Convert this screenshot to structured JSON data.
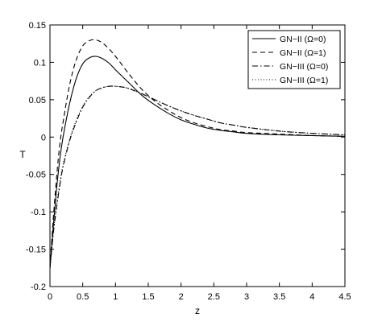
{
  "chart_data": {
    "type": "line",
    "title": "",
    "xlabel": "z",
    "ylabel": "T",
    "xlim": [
      0,
      4.5
    ],
    "ylim": [
      -0.2,
      0.15
    ],
    "xticks": [
      "0",
      "0.5",
      "1",
      "1.5",
      "2",
      "2.5",
      "3",
      "3.5",
      "4",
      "4.5"
    ],
    "yticks": [
      "0.15",
      "0.1",
      "0.05",
      "0",
      "-0.05",
      "-0.1",
      "-0.15",
      "-0.2"
    ],
    "grid": false,
    "legend_position": "top-right",
    "series": [
      {
        "name": "GN−II (Ω=0)",
        "style": "solid",
        "x": [
          0,
          0.05,
          0.1,
          0.15,
          0.2,
          0.3,
          0.4,
          0.5,
          0.6,
          0.7,
          0.8,
          0.9,
          1.0,
          1.2,
          1.4,
          1.6,
          1.8,
          2.0,
          2.2,
          2.4,
          2.6,
          2.8,
          3.0,
          3.5,
          4.0,
          4.5
        ],
        "y": [
          -0.175,
          -0.12,
          -0.07,
          -0.03,
          0.0,
          0.045,
          0.078,
          0.098,
          0.106,
          0.108,
          0.105,
          0.099,
          0.09,
          0.073,
          0.056,
          0.043,
          0.032,
          0.023,
          0.017,
          0.012,
          0.009,
          0.007,
          0.005,
          0.003,
          0.002,
          0.001
        ]
      },
      {
        "name": "GN−II (Ω=1)",
        "style": "dashed",
        "x": [
          0,
          0.05,
          0.1,
          0.15,
          0.2,
          0.3,
          0.4,
          0.5,
          0.6,
          0.7,
          0.8,
          0.9,
          1.0,
          1.2,
          1.4,
          1.6,
          1.8,
          2.0,
          2.2,
          2.4,
          2.6,
          2.8,
          3.0,
          3.5,
          4.0,
          4.5
        ],
        "y": [
          -0.175,
          -0.11,
          -0.055,
          -0.01,
          0.02,
          0.07,
          0.103,
          0.122,
          0.129,
          0.13,
          0.126,
          0.118,
          0.108,
          0.085,
          0.064,
          0.048,
          0.036,
          0.026,
          0.019,
          0.014,
          0.01,
          0.008,
          0.006,
          0.004,
          0.002,
          0.001
        ]
      },
      {
        "name": "GN−III (Ω=0)",
        "style": "dashdot",
        "x": [
          0,
          0.05,
          0.1,
          0.15,
          0.2,
          0.3,
          0.4,
          0.5,
          0.6,
          0.7,
          0.8,
          0.9,
          1.0,
          1.1,
          1.2,
          1.4,
          1.6,
          1.8,
          2.0,
          2.2,
          2.4,
          2.6,
          2.8,
          3.0,
          3.5,
          4.0,
          4.5
        ],
        "y": [
          -0.175,
          -0.13,
          -0.095,
          -0.065,
          -0.04,
          -0.005,
          0.02,
          0.04,
          0.053,
          0.062,
          0.066,
          0.068,
          0.068,
          0.067,
          0.065,
          0.058,
          0.05,
          0.042,
          0.035,
          0.029,
          0.024,
          0.019,
          0.016,
          0.013,
          0.008,
          0.005,
          0.003
        ]
      },
      {
        "name": "GN−III (Ω=1)",
        "style": "dotted",
        "x": [
          0,
          0.05,
          0.1,
          0.15,
          0.2,
          0.3,
          0.4,
          0.5,
          0.6,
          0.7,
          0.8,
          0.9,
          1.0,
          1.1,
          1.2,
          1.4,
          1.6,
          1.8,
          2.0,
          2.2,
          2.4,
          2.6,
          2.8,
          3.0,
          3.5,
          4.0,
          4.5
        ],
        "y": [
          -0.175,
          -0.128,
          -0.092,
          -0.062,
          -0.037,
          -0.003,
          0.022,
          0.041,
          0.054,
          0.062,
          0.066,
          0.068,
          0.068,
          0.067,
          0.065,
          0.058,
          0.05,
          0.042,
          0.035,
          0.029,
          0.024,
          0.019,
          0.016,
          0.013,
          0.008,
          0.005,
          0.003
        ]
      }
    ]
  }
}
